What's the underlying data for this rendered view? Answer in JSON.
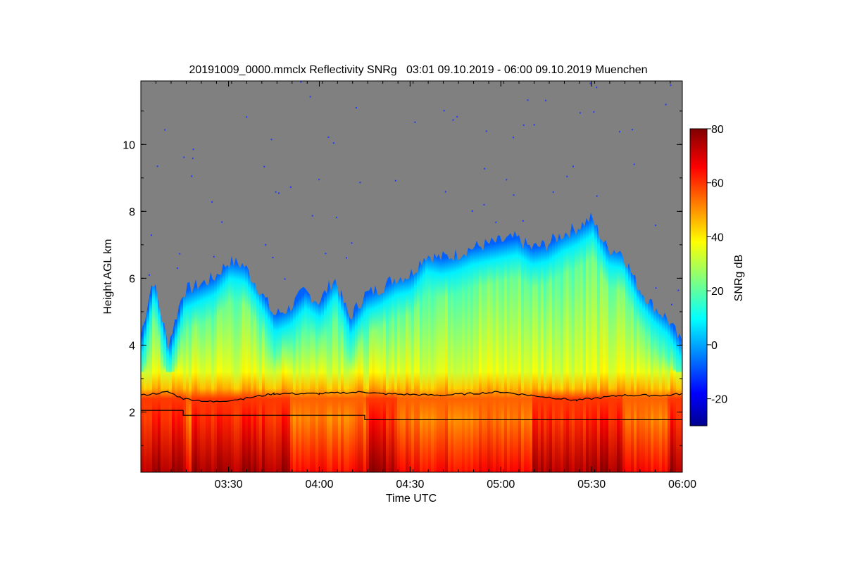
{
  "chart_data": {
    "type": "heatmap",
    "title": "20191009_0000.mmclx Reflectivity SNRg   03:01 09.10.2019 - 06:00 09.10.2019 Muenchen",
    "xlabel": "Time UTC",
    "ylabel": "Height AGL km",
    "xlim": [
      "03:01",
      "06:00"
    ],
    "ylim": [
      0.2,
      11.9
    ],
    "x_ticks": [
      "03:30",
      "04:00",
      "04:30",
      "05:00",
      "05:30",
      "06:00"
    ],
    "y_ticks": [
      2,
      4,
      6,
      8,
      10
    ],
    "colorbar": {
      "label": "SNRg dB",
      "range": [
        -30,
        80
      ],
      "ticks": [
        -20,
        0,
        20,
        40,
        60,
        80
      ],
      "colormap": "jet"
    },
    "background_color": "#808080",
    "echo_top_km": [
      {
        "t": "03:01",
        "h": 4.3
      },
      {
        "t": "03:05",
        "h": 6.0
      },
      {
        "t": "03:10",
        "h": 4.0
      },
      {
        "t": "03:15",
        "h": 5.6
      },
      {
        "t": "03:20",
        "h": 5.8
      },
      {
        "t": "03:25",
        "h": 6.0
      },
      {
        "t": "03:30",
        "h": 6.5
      },
      {
        "t": "03:35",
        "h": 6.4
      },
      {
        "t": "03:40",
        "h": 5.7
      },
      {
        "t": "03:45",
        "h": 4.9
      },
      {
        "t": "03:50",
        "h": 5.1
      },
      {
        "t": "03:55",
        "h": 5.6
      },
      {
        "t": "04:00",
        "h": 5.3
      },
      {
        "t": "04:05",
        "h": 6.0
      },
      {
        "t": "04:10",
        "h": 4.8
      },
      {
        "t": "04:15",
        "h": 5.5
      },
      {
        "t": "04:20",
        "h": 5.7
      },
      {
        "t": "04:25",
        "h": 6.0
      },
      {
        "t": "04:30",
        "h": 6.1
      },
      {
        "t": "04:35",
        "h": 6.7
      },
      {
        "t": "04:40",
        "h": 6.6
      },
      {
        "t": "04:45",
        "h": 6.7
      },
      {
        "t": "04:50",
        "h": 6.9
      },
      {
        "t": "04:55",
        "h": 7.0
      },
      {
        "t": "05:00",
        "h": 7.1
      },
      {
        "t": "05:05",
        "h": 7.2
      },
      {
        "t": "05:10",
        "h": 6.9
      },
      {
        "t": "05:15",
        "h": 7.0
      },
      {
        "t": "05:20",
        "h": 7.3
      },
      {
        "t": "05:25",
        "h": 7.5
      },
      {
        "t": "05:30",
        "h": 7.8
      },
      {
        "t": "05:35",
        "h": 6.9
      },
      {
        "t": "05:40",
        "h": 6.8
      },
      {
        "t": "05:45",
        "h": 5.8
      },
      {
        "t": "05:50",
        "h": 5.2
      },
      {
        "t": "05:55",
        "h": 4.8
      },
      {
        "t": "06:00",
        "h": 4.0
      }
    ],
    "melting_layer_km": [
      {
        "t": "03:01",
        "h": 2.5
      },
      {
        "t": "03:10",
        "h": 2.6
      },
      {
        "t": "03:15",
        "h": 2.4
      },
      {
        "t": "03:25",
        "h": 2.3
      },
      {
        "t": "03:35",
        "h": 2.4
      },
      {
        "t": "03:45",
        "h": 2.55
      },
      {
        "t": "04:00",
        "h": 2.55
      },
      {
        "t": "04:15",
        "h": 2.6
      },
      {
        "t": "04:20",
        "h": 2.55
      },
      {
        "t": "04:40",
        "h": 2.5
      },
      {
        "t": "05:00",
        "h": 2.6
      },
      {
        "t": "05:10",
        "h": 2.5
      },
      {
        "t": "05:25",
        "h": 2.35
      },
      {
        "t": "05:40",
        "h": 2.5
      },
      {
        "t": "05:55",
        "h": 2.5
      },
      {
        "t": "06:00",
        "h": 2.55
      }
    ],
    "lower_step_line_km": [
      {
        "t": "03:01",
        "h": 2.05
      },
      {
        "t": "03:15",
        "h": 2.05
      },
      {
        "t": "03:15",
        "h": 1.9
      },
      {
        "t": "04:15",
        "h": 1.9
      },
      {
        "t": "04:15",
        "h": 1.77
      },
      {
        "t": "06:00",
        "h": 1.77
      }
    ]
  }
}
